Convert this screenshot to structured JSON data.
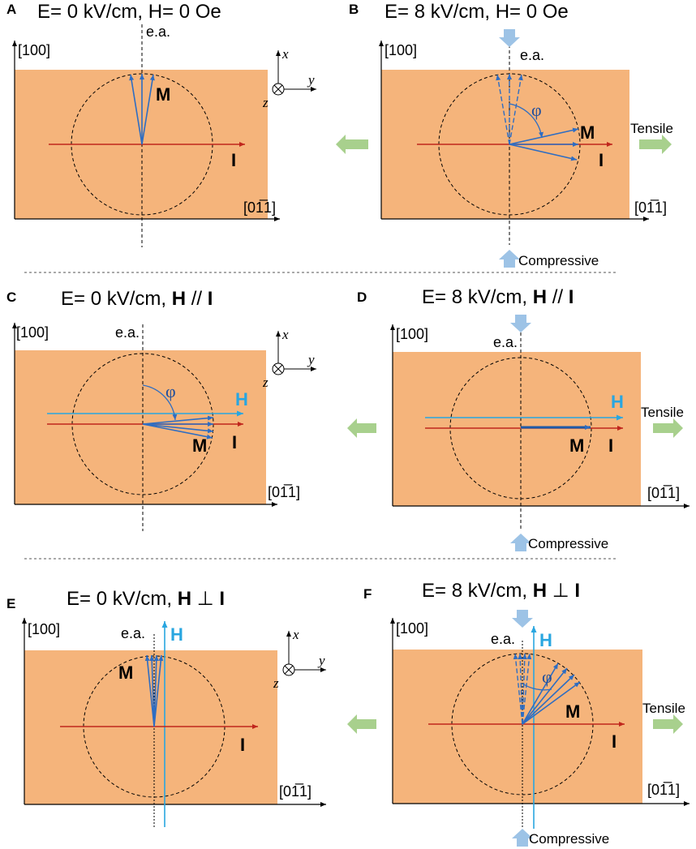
{
  "panels": [
    {
      "id": "A",
      "title": "E= 0 kV/cm, H= 0 Oe",
      "x_axis": "[100]",
      "y_axis": "[01̅1]",
      "ea": "e.a.",
      "M": "M",
      "I": "I"
    },
    {
      "id": "B",
      "title": "E= 8 kV/cm, H= 0 Oe",
      "x_axis": "[100]",
      "y_axis": "[01̅1]",
      "ea": "e.a.",
      "M": "M",
      "I": "I",
      "phi": "φ",
      "tensile": "Tensile",
      "compressive": "Compressive"
    },
    {
      "id": "C",
      "title_pre": "E= 0 kV/cm, ",
      "title_H": "H",
      "title_rel": " // ",
      "title_I": "I",
      "x_axis": "[100]",
      "y_axis": "[01̅1]",
      "ea": "e.a.",
      "M": "M",
      "I": "I",
      "H": "H",
      "phi": "φ"
    },
    {
      "id": "D",
      "title_pre": "E= 8 kV/cm, ",
      "title_H": "H",
      "title_rel": " // ",
      "title_I": "I",
      "x_axis": "[100]",
      "y_axis": "[01̅1]",
      "ea": "e.a.",
      "M": "M",
      "I": "I",
      "H": "H",
      "tensile": "Tensile",
      "compressive": "Compressive"
    },
    {
      "id": "E",
      "title_pre": "E= 0 kV/cm, ",
      "title_H": "H",
      "title_rel": " ⊥ ",
      "title_I": "I",
      "x_axis": "[100]",
      "y_axis": "[01̅1]",
      "ea": "e.a.",
      "M": "M",
      "I": "I",
      "H": "H"
    },
    {
      "id": "F",
      "title_pre": "E= 8 kV/cm, ",
      "title_H": "H",
      "title_rel": " ⊥ ",
      "title_I": "I",
      "x_axis": "[100]",
      "y_axis": "[01̅1]",
      "ea": "e.a.",
      "M": "M",
      "I": "I",
      "H": "H",
      "phi": "φ",
      "tensile": "Tensile",
      "compressive": "Compressive"
    }
  ],
  "coord_labels": {
    "x": "x",
    "y": "y",
    "z": "z"
  },
  "colors": {
    "substrate": "#f5b47b",
    "current": "#c0261d",
    "magnetization": "#2e6dc2",
    "field": "#29a6e0",
    "strain_arrow_green": "#a8d08d",
    "strain_arrow_blue": "#9dc3e6"
  }
}
